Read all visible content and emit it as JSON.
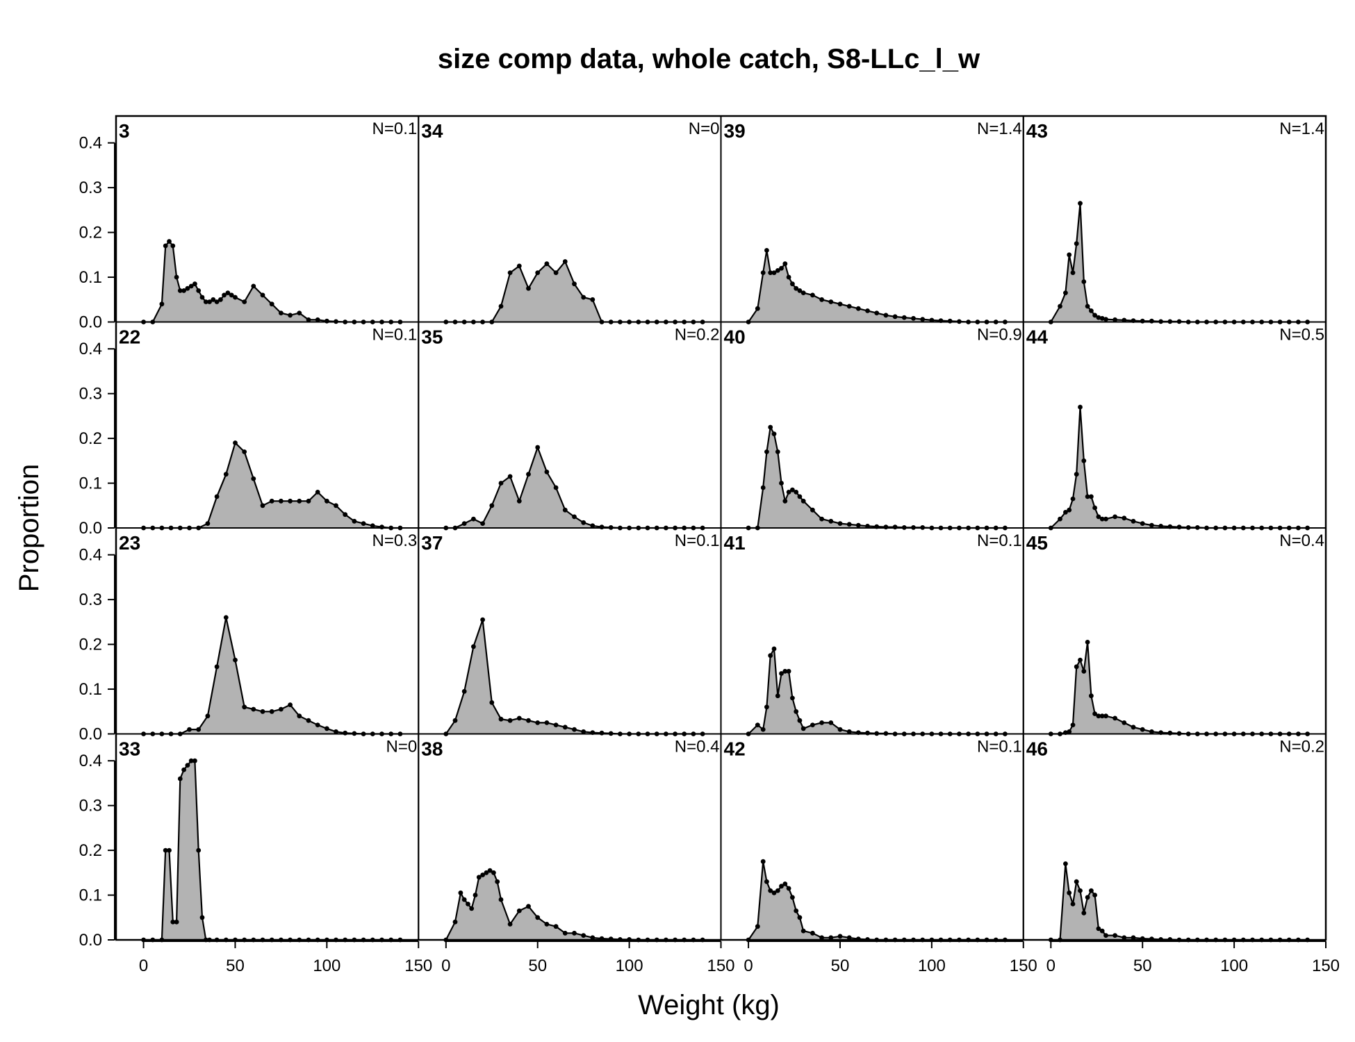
{
  "chart_data": {
    "type": "area",
    "title": "size comp data, whole catch, S8-LLc_l_w",
    "xlabel": "Weight (kg)",
    "ylabel": "Proportion",
    "xlim": [
      -15,
      150
    ],
    "ylim": [
      0,
      0.46
    ],
    "x_ticks": [
      "0",
      "50",
      "100",
      "150"
    ],
    "y_ticks": [
      "0.0",
      "0.1",
      "0.2",
      "0.3",
      "0.4"
    ],
    "layout": "4x4 panels, filled column by column",
    "bins_kg": [
      0,
      5,
      8,
      10,
      12,
      14,
      16,
      18,
      20,
      22,
      24,
      26,
      28,
      30,
      32,
      34,
      36,
      38,
      40,
      42,
      44,
      46,
      48,
      50,
      52,
      54,
      56,
      58,
      60,
      62,
      64,
      66,
      68,
      70,
      72,
      74,
      76,
      78,
      80
    ],
    "panels": [
      {
        "id": "3",
        "n_label": "N=0.1",
        "x": [
          0,
          5,
          10,
          12,
          14,
          16,
          18,
          20,
          22,
          24,
          26,
          28,
          30,
          32,
          34,
          36,
          38,
          40,
          42,
          44,
          46,
          48,
          50,
          55,
          60,
          65,
          70,
          75,
          80,
          85,
          90,
          95,
          100,
          105,
          110,
          115,
          120,
          125,
          130,
          135,
          140
        ],
        "values": [
          0,
          0,
          0.04,
          0.17,
          0.18,
          0.17,
          0.1,
          0.07,
          0.07,
          0.075,
          0.08,
          0.085,
          0.07,
          0.055,
          0.045,
          0.045,
          0.05,
          0.045,
          0.05,
          0.06,
          0.065,
          0.06,
          0.055,
          0.045,
          0.08,
          0.06,
          0.04,
          0.02,
          0.015,
          0.02,
          0.005,
          0.005,
          0.002,
          0.001,
          0,
          0,
          0,
          0,
          0,
          0,
          0
        ]
      },
      {
        "id": "22",
        "n_label": "N=0.1",
        "x": [
          0,
          5,
          10,
          15,
          20,
          25,
          30,
          35,
          40,
          45,
          50,
          55,
          60,
          65,
          70,
          75,
          80,
          85,
          90,
          95,
          100,
          105,
          110,
          115,
          120,
          125,
          130,
          135,
          140
        ],
        "values": [
          0,
          0,
          0,
          0,
          0,
          0,
          0,
          0.01,
          0.07,
          0.12,
          0.19,
          0.17,
          0.11,
          0.05,
          0.06,
          0.06,
          0.06,
          0.06,
          0.06,
          0.08,
          0.06,
          0.05,
          0.03,
          0.015,
          0.01,
          0.005,
          0.002,
          0,
          0
        ]
      },
      {
        "id": "23",
        "n_label": "N=0.3",
        "x": [
          0,
          5,
          10,
          15,
          20,
          25,
          30,
          35,
          40,
          45,
          50,
          55,
          60,
          65,
          70,
          75,
          80,
          85,
          90,
          95,
          100,
          105,
          110,
          115,
          120,
          125,
          130,
          135,
          140
        ],
        "values": [
          0,
          0,
          0,
          0,
          0,
          0.01,
          0.01,
          0.04,
          0.15,
          0.26,
          0.165,
          0.06,
          0.055,
          0.05,
          0.05,
          0.055,
          0.065,
          0.04,
          0.03,
          0.02,
          0.012,
          0.005,
          0.002,
          0.001,
          0,
          0,
          0,
          0,
          0
        ]
      },
      {
        "id": "33",
        "n_label": "N=0",
        "x": [
          0,
          5,
          10,
          12,
          14,
          16,
          18,
          20,
          22,
          24,
          26,
          28,
          30,
          32,
          34,
          36,
          40,
          45,
          50,
          55,
          60,
          65,
          70,
          75,
          80,
          85,
          90,
          95,
          100,
          105,
          110,
          115,
          120,
          125,
          130,
          135,
          140
        ],
        "values": [
          0,
          0,
          0,
          0.2,
          0.2,
          0.04,
          0.04,
          0.36,
          0.38,
          0.39,
          0.4,
          0.4,
          0.2,
          0.05,
          0,
          0,
          0,
          0,
          0,
          0,
          0,
          0,
          0,
          0,
          0,
          0,
          0,
          0,
          0,
          0,
          0,
          0,
          0,
          0,
          0,
          0,
          0
        ]
      },
      {
        "id": "34",
        "n_label": "N=0",
        "x": [
          0,
          5,
          10,
          15,
          20,
          25,
          30,
          35,
          40,
          45,
          50,
          55,
          60,
          65,
          70,
          75,
          80,
          85,
          90,
          95,
          100,
          105,
          110,
          115,
          120,
          125,
          130,
          135,
          140
        ],
        "values": [
          0,
          0,
          0,
          0,
          0,
          0,
          0.035,
          0.11,
          0.125,
          0.075,
          0.11,
          0.13,
          0.11,
          0.135,
          0.085,
          0.055,
          0.05,
          0,
          0,
          0,
          0,
          0,
          0,
          0,
          0,
          0,
          0,
          0,
          0
        ]
      },
      {
        "id": "35",
        "n_label": "N=0.2",
        "x": [
          0,
          5,
          10,
          15,
          20,
          25,
          30,
          35,
          40,
          45,
          50,
          55,
          60,
          65,
          70,
          75,
          80,
          85,
          90,
          95,
          100,
          105,
          110,
          115,
          120,
          125,
          130,
          135,
          140
        ],
        "values": [
          0,
          0,
          0.01,
          0.02,
          0.01,
          0.05,
          0.1,
          0.115,
          0.06,
          0.12,
          0.18,
          0.125,
          0.09,
          0.04,
          0.025,
          0.012,
          0.005,
          0.002,
          0.001,
          0,
          0,
          0,
          0,
          0,
          0,
          0,
          0,
          0,
          0
        ]
      },
      {
        "id": "37",
        "n_label": "N=0.1",
        "x": [
          0,
          5,
          10,
          15,
          20,
          25,
          30,
          35,
          40,
          45,
          50,
          55,
          60,
          65,
          70,
          75,
          80,
          85,
          90,
          95,
          100,
          105,
          110,
          115,
          120,
          125,
          130,
          135,
          140
        ],
        "values": [
          0,
          0.03,
          0.095,
          0.195,
          0.255,
          0.07,
          0.033,
          0.03,
          0.035,
          0.03,
          0.025,
          0.025,
          0.02,
          0.015,
          0.01,
          0.005,
          0.003,
          0.002,
          0.001,
          0,
          0,
          0,
          0,
          0,
          0,
          0,
          0,
          0,
          0
        ]
      },
      {
        "id": "38",
        "n_label": "N=0.4",
        "x": [
          0,
          5,
          8,
          10,
          12,
          14,
          16,
          18,
          20,
          22,
          24,
          26,
          28,
          30,
          35,
          40,
          45,
          50,
          55,
          60,
          65,
          70,
          75,
          80,
          85,
          90,
          95,
          100,
          105,
          110,
          115,
          120,
          125,
          130,
          135,
          140
        ],
        "values": [
          0,
          0.04,
          0.105,
          0.09,
          0.08,
          0.07,
          0.1,
          0.14,
          0.145,
          0.15,
          0.155,
          0.15,
          0.13,
          0.09,
          0.035,
          0.065,
          0.075,
          0.05,
          0.035,
          0.03,
          0.015,
          0.015,
          0.01,
          0.005,
          0.003,
          0.002,
          0.001,
          0.001,
          0,
          0,
          0,
          0,
          0,
          0,
          0,
          0
        ]
      },
      {
        "id": "39",
        "n_label": "N=1.4",
        "x": [
          0,
          5,
          8,
          10,
          12,
          14,
          16,
          18,
          20,
          22,
          24,
          26,
          28,
          30,
          35,
          40,
          45,
          50,
          55,
          60,
          65,
          70,
          75,
          80,
          85,
          90,
          95,
          100,
          105,
          110,
          115,
          120,
          125,
          130,
          135,
          140
        ],
        "values": [
          0,
          0.03,
          0.11,
          0.16,
          0.11,
          0.11,
          0.115,
          0.12,
          0.13,
          0.1,
          0.085,
          0.075,
          0.07,
          0.065,
          0.06,
          0.05,
          0.045,
          0.04,
          0.035,
          0.03,
          0.025,
          0.02,
          0.015,
          0.012,
          0.01,
          0.008,
          0.006,
          0.004,
          0.003,
          0.002,
          0.001,
          0,
          0,
          0,
          0,
          0
        ]
      },
      {
        "id": "40",
        "n_label": "N=0.9",
        "x": [
          0,
          5,
          8,
          10,
          12,
          14,
          16,
          18,
          20,
          22,
          24,
          26,
          28,
          30,
          35,
          40,
          45,
          50,
          55,
          60,
          65,
          70,
          75,
          80,
          85,
          90,
          95,
          100,
          105,
          110,
          115,
          120,
          125,
          130,
          135,
          140
        ],
        "values": [
          0,
          0,
          0.09,
          0.17,
          0.225,
          0.21,
          0.17,
          0.1,
          0.06,
          0.08,
          0.085,
          0.08,
          0.07,
          0.06,
          0.04,
          0.02,
          0.015,
          0.01,
          0.008,
          0.006,
          0.004,
          0.003,
          0.002,
          0.002,
          0.001,
          0.001,
          0.001,
          0,
          0,
          0,
          0,
          0,
          0,
          0,
          0,
          0
        ]
      },
      {
        "id": "41",
        "n_label": "N=0.1",
        "x": [
          0,
          5,
          8,
          10,
          12,
          14,
          16,
          18,
          20,
          22,
          24,
          26,
          28,
          30,
          35,
          40,
          45,
          50,
          55,
          60,
          65,
          70,
          75,
          80,
          85,
          90,
          95,
          100,
          105,
          110,
          115,
          120,
          125,
          130,
          135,
          140
        ],
        "values": [
          0,
          0.02,
          0.01,
          0.06,
          0.175,
          0.19,
          0.085,
          0.135,
          0.14,
          0.14,
          0.08,
          0.05,
          0.03,
          0.012,
          0.02,
          0.025,
          0.025,
          0.01,
          0.005,
          0.003,
          0.002,
          0.001,
          0.001,
          0,
          0,
          0,
          0,
          0,
          0,
          0,
          0,
          0,
          0,
          0,
          0,
          0
        ]
      },
      {
        "id": "42",
        "n_label": "N=0.1",
        "x": [
          0,
          5,
          8,
          10,
          12,
          14,
          16,
          18,
          20,
          22,
          24,
          26,
          28,
          30,
          35,
          40,
          45,
          50,
          55,
          60,
          65,
          70,
          75,
          80,
          85,
          90,
          95,
          100,
          105,
          110,
          115,
          120,
          125,
          130,
          135,
          140
        ],
        "values": [
          0,
          0.03,
          0.175,
          0.13,
          0.11,
          0.105,
          0.11,
          0.12,
          0.125,
          0.115,
          0.095,
          0.065,
          0.05,
          0.02,
          0.015,
          0.005,
          0.005,
          0.008,
          0.005,
          0.002,
          0.001,
          0,
          0,
          0,
          0,
          0,
          0,
          0,
          0,
          0,
          0,
          0,
          0,
          0,
          0,
          0
        ]
      },
      {
        "id": "43",
        "n_label": "N=1.4",
        "x": [
          0,
          5,
          8,
          10,
          12,
          14,
          16,
          18,
          20,
          22,
          24,
          26,
          28,
          30,
          35,
          40,
          45,
          50,
          55,
          60,
          65,
          70,
          75,
          80,
          85,
          90,
          95,
          100,
          105,
          110,
          115,
          120,
          125,
          130,
          135,
          140
        ],
        "values": [
          0,
          0.035,
          0.065,
          0.15,
          0.11,
          0.175,
          0.265,
          0.09,
          0.035,
          0.025,
          0.015,
          0.01,
          0.008,
          0.006,
          0.005,
          0.004,
          0.003,
          0.002,
          0.002,
          0.001,
          0.001,
          0.001,
          0,
          0,
          0,
          0,
          0,
          0,
          0,
          0,
          0,
          0,
          0,
          0,
          0,
          0
        ]
      },
      {
        "id": "44",
        "n_label": "N=0.5",
        "x": [
          0,
          5,
          8,
          10,
          12,
          14,
          16,
          18,
          20,
          22,
          24,
          26,
          28,
          30,
          35,
          40,
          45,
          50,
          55,
          60,
          65,
          70,
          75,
          80,
          85,
          90,
          95,
          100,
          105,
          110,
          115,
          120,
          125,
          130,
          135,
          140
        ],
        "values": [
          0,
          0.02,
          0.035,
          0.04,
          0.065,
          0.12,
          0.27,
          0.15,
          0.07,
          0.07,
          0.045,
          0.025,
          0.02,
          0.02,
          0.025,
          0.022,
          0.015,
          0.01,
          0.006,
          0.004,
          0.003,
          0.002,
          0.001,
          0.001,
          0,
          0,
          0,
          0,
          0,
          0,
          0,
          0,
          0,
          0,
          0,
          0
        ]
      },
      {
        "id": "45",
        "n_label": "N=0.4",
        "x": [
          0,
          5,
          8,
          10,
          12,
          14,
          16,
          18,
          20,
          22,
          24,
          26,
          28,
          30,
          35,
          40,
          45,
          50,
          55,
          60,
          65,
          70,
          75,
          80,
          85,
          90,
          95,
          100,
          105,
          110,
          115,
          120,
          125,
          130,
          135,
          140
        ],
        "values": [
          0,
          0,
          0.003,
          0.005,
          0.02,
          0.15,
          0.165,
          0.14,
          0.205,
          0.085,
          0.045,
          0.04,
          0.04,
          0.04,
          0.035,
          0.025,
          0.015,
          0.01,
          0.005,
          0.003,
          0.002,
          0.001,
          0,
          0,
          0,
          0,
          0,
          0,
          0,
          0,
          0,
          0,
          0,
          0,
          0,
          0
        ]
      },
      {
        "id": "46",
        "n_label": "N=0.2",
        "x": [
          0,
          5,
          8,
          10,
          12,
          14,
          16,
          18,
          20,
          22,
          24,
          26,
          28,
          30,
          35,
          40,
          45,
          50,
          55,
          60,
          65,
          70,
          75,
          80,
          85,
          90,
          95,
          100,
          105,
          110,
          115,
          120,
          125,
          130,
          135,
          140
        ],
        "values": [
          0,
          0,
          0.17,
          0.105,
          0.08,
          0.13,
          0.11,
          0.06,
          0.095,
          0.11,
          0.1,
          0.025,
          0.02,
          0.01,
          0.01,
          0.005,
          0.005,
          0.003,
          0.002,
          0.001,
          0.001,
          0,
          0,
          0,
          0,
          0,
          0,
          0,
          0,
          0,
          0,
          0,
          0,
          0,
          0,
          0
        ]
      }
    ]
  }
}
